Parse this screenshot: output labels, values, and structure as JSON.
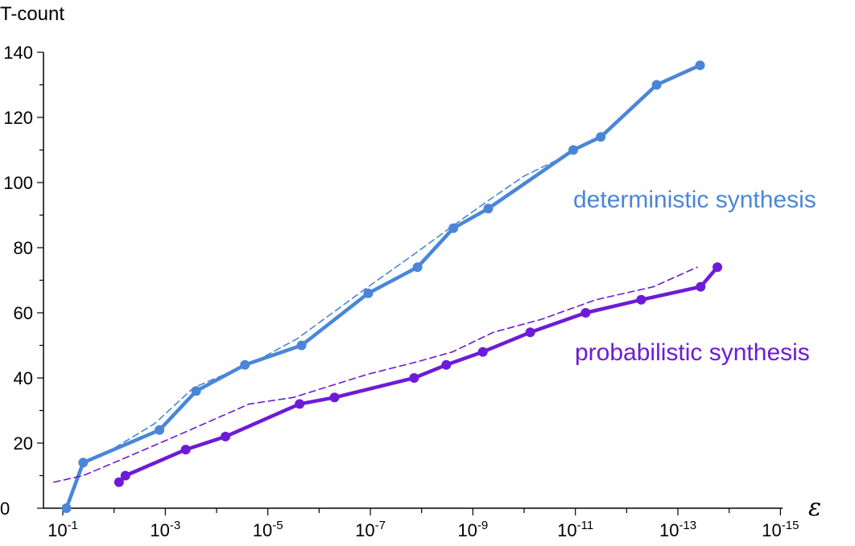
{
  "chart_data": {
    "type": "line",
    "ylabel": "T-count",
    "xlabel": "ε",
    "x_scale": "log-reversed",
    "xlim": [
      0.1,
      1e-15
    ],
    "ylim": [
      0,
      140
    ],
    "y_ticks": [
      0,
      20,
      40,
      60,
      80,
      100,
      120,
      140
    ],
    "x_tick_values": [
      0.1,
      0.001,
      1e-05,
      1e-07,
      1e-09,
      1e-11,
      1e-13,
      1e-15
    ],
    "x_tick_base": "10",
    "x_tick_exponents": [
      "-1",
      "-3",
      "-5",
      "-7",
      "-9",
      "-11",
      "-13",
      "-15"
    ],
    "grid": false,
    "legend": "inline labels",
    "series": [
      {
        "name": "deterministic synthesis",
        "color": "#4a86d8",
        "style": "solid-markers",
        "points": [
          [
            0.085,
            0
          ],
          [
            0.04,
            14
          ],
          [
            0.0013,
            24
          ],
          [
            0.00025,
            36
          ],
          [
            2.8e-05,
            44
          ],
          [
            2.2e-06,
            50
          ],
          [
            1.1e-07,
            66
          ],
          [
            1.2e-08,
            74
          ],
          [
            2.4e-09,
            86
          ],
          [
            5e-10,
            92
          ],
          [
            1.1e-11,
            110
          ],
          [
            3.2e-12,
            114
          ],
          [
            2.6e-13,
            130
          ],
          [
            3.7e-14,
            136
          ]
        ]
      },
      {
        "name": "deterministic synthesis fit",
        "color": "#4a86d8",
        "style": "dashed",
        "points": [
          [
            0.085,
            0
          ],
          [
            0.04,
            14
          ],
          [
            0.011,
            18
          ],
          [
            0.0016,
            26
          ],
          [
            0.00028,
            37
          ],
          [
            1.8e-05,
            45
          ],
          [
            2.7e-06,
            52
          ],
          [
            1.1e-07,
            68
          ],
          [
            1.4e-08,
            78
          ],
          [
            2.3e-09,
            87
          ],
          [
            5.5e-10,
            94
          ],
          [
            1e-10,
            102
          ],
          [
            9e-12,
            110
          ]
        ]
      },
      {
        "name": "probabilistic synthesis",
        "color": "#6d1bd6",
        "style": "solid-markers",
        "points": [
          [
            0.008,
            8
          ],
          [
            0.006,
            10
          ],
          [
            0.0004,
            18
          ],
          [
            6.7e-05,
            22
          ],
          [
            2.4e-06,
            32
          ],
          [
            5e-07,
            34
          ],
          [
            1.4e-08,
            40
          ],
          [
            3.3e-09,
            44
          ],
          [
            6.4e-10,
            48
          ],
          [
            7.6e-11,
            54
          ],
          [
            6.3e-12,
            60
          ],
          [
            5.2e-13,
            64
          ],
          [
            3.6e-14,
            68
          ],
          [
            1.7e-14,
            74
          ]
        ]
      },
      {
        "name": "probabilistic synthesis fit",
        "color": "#6d1bd6",
        "style": "dashed",
        "points": [
          [
            0.15,
            8
          ],
          [
            0.04,
            10
          ],
          [
            0.005,
            16
          ],
          [
            0.00065,
            22
          ],
          [
            2.3e-05,
            32
          ],
          [
            3.2e-06,
            34
          ],
          [
            1.2e-07,
            41
          ],
          [
            1.2e-08,
            45
          ],
          [
            2.5e-09,
            48
          ],
          [
            4e-10,
            54
          ],
          [
            4.6e-11,
            58
          ],
          [
            4e-12,
            64
          ],
          [
            3e-13,
            68
          ],
          [
            4.2e-14,
            74
          ]
        ]
      }
    ]
  }
}
